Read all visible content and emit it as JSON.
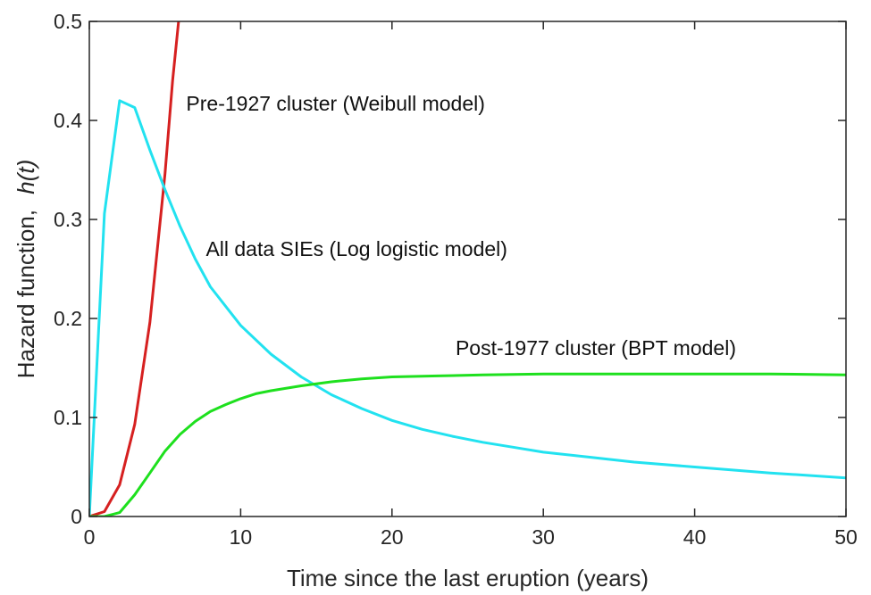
{
  "chart_data": {
    "type": "line",
    "title": "",
    "xlabel": "Time since the last eruption (years)",
    "ylabel": "Hazard function,",
    "ylabel_italic": "h(t)",
    "xlim": [
      0,
      50
    ],
    "ylim": [
      0,
      0.5
    ],
    "xticks": [
      0,
      10,
      20,
      30,
      40,
      50
    ],
    "xtick_labels": [
      "0",
      "10",
      "20",
      "30",
      "40",
      "50"
    ],
    "yticks": [
      0,
      0.1,
      0.2,
      0.3,
      0.4,
      0.5
    ],
    "ytick_labels": [
      "0",
      "0.1",
      "0.2",
      "0.3",
      "0.4",
      "0.5"
    ],
    "grid": false,
    "box": true,
    "series": [
      {
        "label": "Pre-1927 cluster (Weibull model)",
        "color": "#d62020",
        "x": [
          0,
          1,
          2,
          3,
          4,
          5,
          5.5,
          5.9
        ],
        "y": [
          0,
          0.005,
          0.032,
          0.093,
          0.196,
          0.346,
          0.44,
          0.5
        ]
      },
      {
        "label": "All data SIEs (Log logistic model)",
        "color": "#22e2f0",
        "x": [
          0,
          1,
          2,
          3,
          4,
          5,
          6,
          7,
          8,
          10,
          12,
          14,
          16,
          18,
          20,
          22,
          24,
          26,
          28,
          30,
          33,
          36,
          40,
          45,
          50
        ],
        "y": [
          0,
          0.306,
          0.42,
          0.413,
          0.37,
          0.33,
          0.293,
          0.26,
          0.232,
          0.193,
          0.164,
          0.141,
          0.123,
          0.109,
          0.097,
          0.088,
          0.081,
          0.075,
          0.07,
          0.065,
          0.06,
          0.055,
          0.05,
          0.044,
          0.039
        ]
      },
      {
        "label": "Post-1977 cluster (BPT model)",
        "color": "#1ee01e",
        "x": [
          0,
          1,
          2,
          3,
          4,
          5,
          6,
          7,
          8,
          9,
          10,
          11,
          12,
          14,
          16,
          18,
          20,
          23,
          26,
          30,
          35,
          40,
          45,
          50
        ],
        "y": [
          0,
          0,
          0.004,
          0.022,
          0.044,
          0.066,
          0.083,
          0.096,
          0.106,
          0.113,
          0.119,
          0.124,
          0.127,
          0.132,
          0.136,
          0.139,
          0.141,
          0.142,
          0.143,
          0.144,
          0.144,
          0.144,
          0.144,
          0.143
        ]
      }
    ],
    "annotations": [
      {
        "text": "Pre-1927 cluster (Weibull model)",
        "x": 6.4,
        "y": 0.41
      },
      {
        "text": "All data SIEs (Log logistic model)",
        "x": 7.7,
        "y": 0.263
      },
      {
        "text": "Post-1977 cluster (BPT model)",
        "x": 24.2,
        "y": 0.163
      }
    ]
  }
}
